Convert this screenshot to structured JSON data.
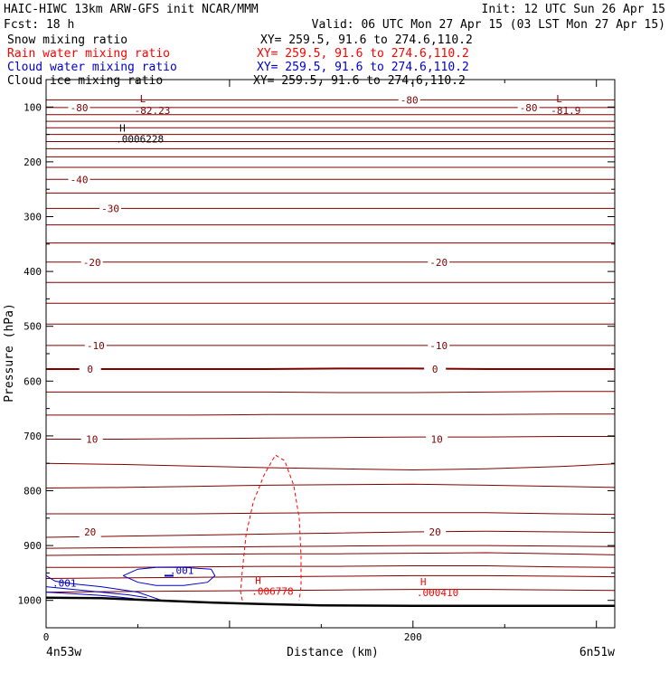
{
  "header": {
    "title": "HAIC-HIWC 13km ARW-GFS init   NCAR/MMM",
    "init": "Init: 12 UTC Sun 26 Apr 15",
    "fcst": "Fcst:    18 h",
    "valid": "Valid: 06 UTC Mon 27 Apr 15 (03 LST Mon 27 Apr 15)"
  },
  "fields": [
    {
      "name": "Snow mixing ratio",
      "xy": "XY= 259.5, 91.6 to 274.6,110.2",
      "color": "#000000"
    },
    {
      "name": "Rain water mixing ratio",
      "xy": "XY= 259.5, 91.6 to 274.6,110.2",
      "color": "#ff0000"
    },
    {
      "name": "Cloud water mixing ratio",
      "xy": "XY= 259.5, 91.6 to 274.6,110.2",
      "color": "#0000cc"
    },
    {
      "name": "Cloud ice mixing ratio",
      "xy": "XY= 259.5, 91.6 to 274.6,110.2",
      "color": "#000000"
    }
  ],
  "chart_data": {
    "type": "line",
    "subtype": "vertical cross-section",
    "xlabel": "Distance (km)",
    "ylabel": "Pressure (hPa)",
    "xlim": [
      0,
      310
    ],
    "ylim": [
      1050,
      50
    ],
    "x_ticks": [
      "0",
      "200"
    ],
    "y_ticks": [
      "100",
      "200",
      "300",
      "400",
      "500",
      "600",
      "700",
      "800",
      "900",
      "1000"
    ],
    "endpoint_left": "4n53w",
    "endpoint_right": "6n51w",
    "terrain": {
      "name": "terrain",
      "x": [
        0,
        30,
        60,
        90,
        120,
        150,
        200,
        250,
        310
      ],
      "p": [
        995,
        996,
        1000,
        1004,
        1007,
        1009,
        1010,
        1010,
        1010
      ]
    },
    "temperature_contours": {
      "color": "#800000",
      "units": "°C",
      "levels": [
        {
          "p": [
            87,
            87,
            87,
            87,
            87,
            87,
            87,
            87,
            87
          ]
        },
        {
          "p": [
            101,
            101,
            101,
            101,
            101,
            101,
            101,
            101,
            101
          ]
        },
        {
          "p": [
            114,
            114,
            114,
            114,
            114,
            114,
            114,
            114,
            114
          ]
        },
        {
          "p": [
            126,
            126,
            126,
            126,
            126,
            126,
            126,
            126,
            126
          ]
        },
        {
          "p": [
            138,
            138,
            138,
            138,
            138,
            138,
            138,
            138,
            138
          ]
        },
        {
          "p": [
            150,
            150,
            150,
            150,
            150,
            150,
            150,
            150,
            150
          ]
        },
        {
          "p": [
            163,
            163,
            163,
            163,
            163,
            163,
            163,
            163,
            163
          ]
        },
        {
          "p": [
            176,
            176,
            176,
            176,
            176,
            176,
            176,
            176,
            176
          ]
        },
        {
          "p": [
            191,
            191,
            191,
            191,
            191,
            191,
            191,
            191,
            191
          ]
        },
        {
          "p": [
            210,
            210,
            210,
            210,
            210,
            210,
            210,
            210,
            210
          ]
        },
        {
          "p": [
            232,
            232,
            232,
            232,
            232,
            232,
            232,
            232,
            232
          ]
        },
        {
          "p": [
            257,
            257,
            257,
            257,
            257,
            257,
            257,
            257,
            257
          ]
        },
        {
          "p": [
            285,
            285,
            285,
            285,
            285,
            285,
            285,
            285,
            285
          ]
        },
        {
          "p": [
            315,
            315,
            315,
            315,
            315,
            315,
            315,
            315,
            315
          ]
        },
        {
          "p": [
            348,
            348,
            348,
            348,
            348,
            348,
            348,
            348,
            348
          ]
        },
        {
          "p": [
            383,
            383,
            383,
            383,
            383,
            383,
            383,
            383,
            383
          ]
        },
        {
          "p": [
            420,
            420,
            420,
            420,
            420,
            420,
            420,
            420,
            420
          ]
        },
        {
          "p": [
            458,
            458,
            458,
            458,
            458,
            458,
            458,
            458,
            458
          ]
        },
        {
          "p": [
            496,
            496,
            496,
            496,
            496,
            496,
            496,
            496,
            496
          ]
        },
        {
          "p": [
            535,
            535,
            535,
            535,
            535,
            535,
            535,
            535,
            535
          ]
        },
        {
          "p": [
            578,
            578,
            578,
            578,
            577,
            577,
            578,
            578,
            578
          ]
        },
        {
          "p": [
            620,
            620,
            620,
            620,
            621,
            621,
            620,
            619,
            619
          ]
        },
        {
          "p": [
            662,
            662,
            662,
            661,
            661,
            661,
            661,
            660,
            660
          ]
        },
        {
          "p": [
            706,
            706,
            705,
            704,
            703,
            702,
            702,
            701,
            701
          ]
        },
        {
          "p": [
            750,
            752,
            755,
            758,
            760,
            762,
            760,
            756,
            751
          ]
        },
        {
          "p": [
            795,
            794,
            792,
            790,
            789,
            788,
            790,
            792,
            794
          ]
        },
        {
          "p": [
            842,
            842,
            842,
            841,
            840,
            840,
            840,
            842,
            843
          ]
        },
        {
          "p": [
            885,
            883,
            881,
            879,
            877,
            875,
            874,
            875,
            876
          ]
        },
        {
          "p": [
            905,
            904,
            903,
            902,
            901,
            900,
            900,
            901,
            902
          ]
        },
        {
          "p": [
            918,
            917,
            916,
            915,
            915,
            914,
            913,
            915,
            917
          ]
        },
        {
          "p": [
            940,
            940,
            939,
            938,
            938,
            937,
            937,
            939,
            940
          ]
        },
        {
          "p": [
            960,
            959,
            958,
            957,
            956,
            955,
            955,
            956,
            957
          ]
        },
        {
          "p": [
            985,
            984,
            983,
            982,
            981,
            980,
            980,
            981,
            982
          ]
        }
      ],
      "x": [
        0,
        40,
        80,
        120,
        160,
        200,
        240,
        280,
        310
      ],
      "labels": [
        {
          "text": "-80",
          "x": 18,
          "p": 101
        },
        {
          "text": "-80",
          "x": 198,
          "p": 87
        },
        {
          "text": "-80",
          "x": 263,
          "p": 101
        },
        {
          "text": "-40",
          "x": 18,
          "p": 232
        },
        {
          "text": "-30",
          "x": 35,
          "p": 285
        },
        {
          "text": "-20",
          "x": 25,
          "p": 383
        },
        {
          "text": "-20",
          "x": 214,
          "p": 383
        },
        {
          "text": "-10",
          "x": 27,
          "p": 535
        },
        {
          "text": "-10",
          "x": 214,
          "p": 535
        },
        {
          "text": "0",
          "x": 24,
          "p": 578
        },
        {
          "text": "0",
          "x": 212,
          "p": 578
        },
        {
          "text": "10",
          "x": 25,
          "p": 706
        },
        {
          "text": "10",
          "x": 213,
          "p": 706
        },
        {
          "text": "20",
          "x": 24,
          "p": 875
        },
        {
          "text": "20",
          "x": 212,
          "p": 875
        }
      ],
      "extrema": [
        {
          "kind": "L",
          "value": "-82.23",
          "x": 58,
          "p": 91
        },
        {
          "kind": "L",
          "value": "-81.9",
          "x": 285,
          "p": 91
        }
      ]
    },
    "snow_mixing_ratio": {
      "color": "#000000",
      "extrema": [
        {
          "kind": "H",
          "value": ".0006228",
          "x": 38,
          "p": 165
        }
      ]
    },
    "rain_water_mixing_ratio": {
      "color": "#ff0000",
      "style": "dashed",
      "contour": {
        "x": [
          107,
          106,
          107,
          109,
          113,
          119,
          125,
          130,
          135,
          138,
          139,
          139,
          138
        ],
        "p": [
          1000,
          985,
          945,
          880,
          820,
          770,
          735,
          745,
          790,
          850,
          920,
          975,
          1000
        ]
      },
      "extrema": [
        {
          "kind": "H",
          "value": ".006778",
          "x": 112,
          "p": 990
        },
        {
          "kind": "H",
          "value": ".000410",
          "x": 202,
          "p": 992
        }
      ]
    },
    "cloud_water_mixing_ratio": {
      "color": "#0000cc",
      "contours": [
        {
          "label": ".001",
          "x": [
            42,
            50,
            60,
            75,
            90,
            92,
            88,
            75,
            60,
            50,
            42
          ],
          "p": [
            955,
            943,
            940,
            940,
            943,
            955,
            967,
            973,
            973,
            967,
            955
          ]
        },
        {
          "label": ".001",
          "x": [
            0,
            5,
            15,
            30,
            40,
            50,
            63
          ],
          "p": [
            955,
            965,
            970,
            975,
            980,
            985,
            1000
          ]
        },
        {
          "label": "",
          "x": [
            0,
            15,
            30,
            45,
            55
          ],
          "p": [
            975,
            980,
            985,
            990,
            995
          ]
        },
        {
          "label": "",
          "x": [
            0,
            15,
            30,
            40,
            48
          ],
          "p": [
            985,
            988,
            991,
            994,
            997
          ]
        }
      ],
      "labels": [
        {
          "text": ".001",
          "x": 74,
          "p": 945
        },
        {
          "text": ".001",
          "x": 10,
          "p": 968
        }
      ],
      "max_marker": {
        "x": 67,
        "p": 955
      }
    }
  }
}
